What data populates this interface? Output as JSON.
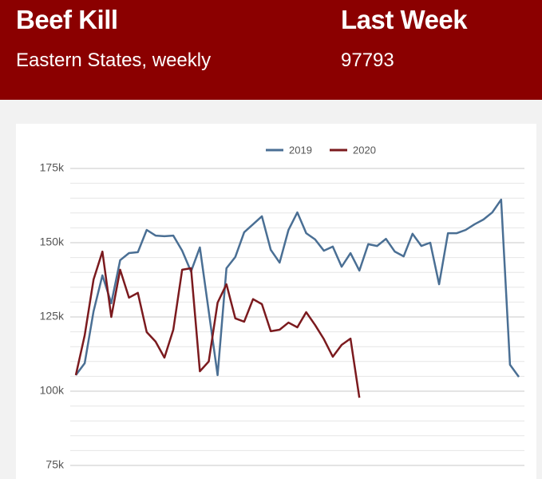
{
  "header": {
    "title": "Beef Kill",
    "subtitle": "Eastern States, weekly",
    "stat_label": "Last Week",
    "stat_value": "97793"
  },
  "chart_data": {
    "type": "line",
    "categories": [
      null,
      null,
      null,
      null,
      null,
      null,
      null,
      null,
      null,
      null,
      null,
      null,
      null,
      null,
      null,
      null,
      null,
      null,
      null,
      null,
      null,
      null,
      null,
      null,
      null,
      null,
      null,
      null,
      null,
      null,
      null,
      null,
      null,
      null,
      null,
      null,
      null,
      null,
      null,
      null,
      null,
      null,
      null,
      null,
      null,
      null,
      null,
      null,
      null,
      null,
      null
    ],
    "series": [
      {
        "name": "2019",
        "color": "#4a6f94",
        "values": [
          105400,
          109400,
          126900,
          139000,
          129600,
          144100,
          146500,
          146800,
          154300,
          152400,
          152200,
          152400,
          147300,
          140300,
          148400,
          126900,
          105400,
          141400,
          145200,
          153500,
          156200,
          158900,
          147600,
          143300,
          154300,
          160200,
          153200,
          151100,
          147300,
          148700,
          141900,
          146500,
          140600,
          149500,
          148900,
          151300,
          147000,
          145400,
          153000,
          148900,
          150000,
          136000,
          153200,
          153200,
          154300,
          156200,
          157800,
          160200,
          164500,
          108900,
          104800
        ]
      },
      {
        "name": "2020",
        "color": "#7b1a1e",
        "values": [
          105400,
          118800,
          137600,
          147000,
          125000,
          140900,
          131500,
          133100,
          119900,
          116700,
          111300,
          120700,
          140900,
          141400,
          106700,
          110000,
          129800,
          136000,
          124500,
          123400,
          131000,
          129300,
          120200,
          120700,
          123100,
          121500,
          126600,
          122300,
          117500,
          111600,
          115600,
          117700,
          97793,
          null,
          null,
          null,
          null,
          null,
          null,
          null,
          null,
          null,
          null,
          null,
          null,
          null,
          null,
          null,
          null,
          null,
          null
        ]
      }
    ],
    "ylim": [
      75000,
      175000
    ],
    "yticks": [
      {
        "value": 75000,
        "label": "75k"
      },
      {
        "value": 100000,
        "label": "100k"
      },
      {
        "value": 125000,
        "label": "125k"
      },
      {
        "value": 150000,
        "label": "150k"
      },
      {
        "value": 175000,
        "label": "175k"
      }
    ],
    "minor_yticks": [
      80000,
      85000,
      90000,
      95000,
      105000,
      110000,
      115000,
      120000,
      130000,
      135000,
      140000,
      145000,
      155000,
      160000,
      165000,
      170000
    ],
    "grid": true
  }
}
